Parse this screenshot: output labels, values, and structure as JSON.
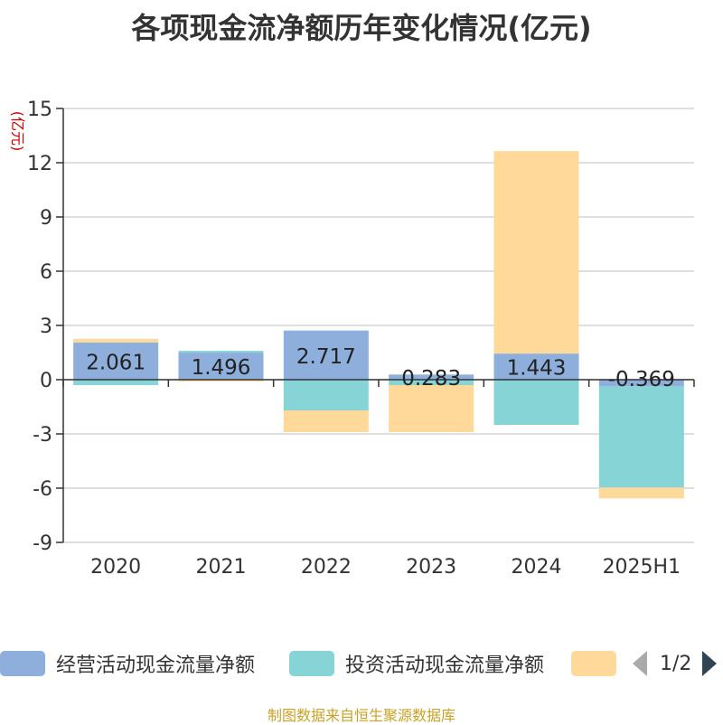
{
  "title": "各项现金流净额历年变化情况(亿元)",
  "source": "制图数据来自恒生聚源数据库",
  "colors": {
    "operating": "#8eaedc",
    "investing": "#86d4d6",
    "financing": "#fed99a"
  },
  "legend": {
    "items": [
      {
        "label": "经营活动现金流量净额",
        "color": "#8eaedc"
      },
      {
        "label": "投资活动现金流量净额",
        "color": "#86d4d6"
      },
      {
        "label": "",
        "color": "#fed99a"
      }
    ],
    "page": "1/2"
  },
  "chart_data": {
    "type": "bar",
    "stacked": true,
    "categories": [
      "2020",
      "2021",
      "2022",
      "2023",
      "2024",
      "2025H1"
    ],
    "ylabel": "(亿元)",
    "ylim": [
      -9,
      15
    ],
    "yticks": [
      15,
      12,
      9,
      6,
      3,
      0,
      -3,
      -6,
      -9
    ],
    "grid": true,
    "legend_position": "bottom",
    "series": [
      {
        "name": "经营活动现金流量净额",
        "values": [
          2.061,
          1.496,
          2.717,
          0.283,
          1.443,
          -0.369
        ],
        "labels": [
          "2.061",
          "1.496",
          "2.717",
          "0.283",
          "1.443",
          "-0.369"
        ]
      },
      {
        "name": "投资活动现金流量净额",
        "values": [
          -0.3,
          0.1,
          -1.7,
          -0.3,
          -2.5,
          -5.6
        ],
        "labels": []
      },
      {
        "values": [
          0.2,
          -0.1,
          -1.2,
          -2.6,
          11.2,
          -0.6
        ],
        "labels": []
      }
    ]
  }
}
